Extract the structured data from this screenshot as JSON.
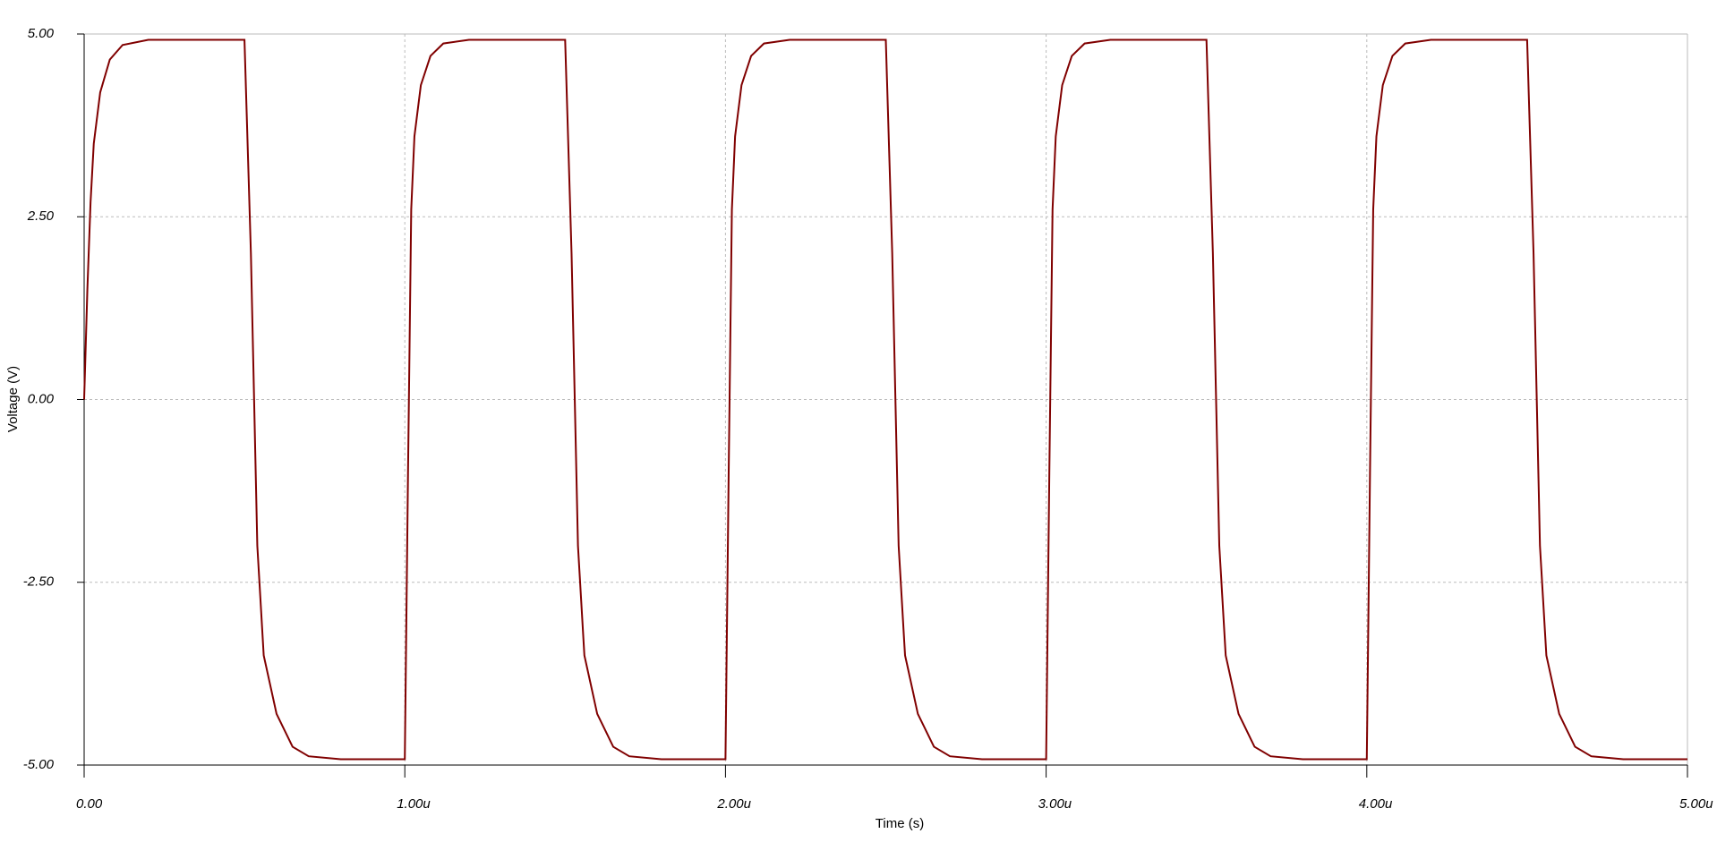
{
  "chart_data": {
    "type": "line",
    "xlabel": "Time (s)",
    "ylabel": "Voltage (V)",
    "xlim": [
      0,
      5e-06
    ],
    "ylim": [
      -5,
      5
    ],
    "xticks": [
      {
        "value": 0,
        "label": "0.00"
      },
      {
        "value": 1e-06,
        "label": "1.00u"
      },
      {
        "value": 2e-06,
        "label": "2.00u"
      },
      {
        "value": 3e-06,
        "label": "3.00u"
      },
      {
        "value": 4e-06,
        "label": "4.00u"
      },
      {
        "value": 5e-06,
        "label": "5.00u"
      }
    ],
    "yticks": [
      {
        "value": -5,
        "label": "-5.00"
      },
      {
        "value": -2.5,
        "label": "-2.50"
      },
      {
        "value": 0,
        "label": "0.00"
      },
      {
        "value": 2.5,
        "label": "2.50"
      },
      {
        "value": 5,
        "label": "5.00"
      }
    ],
    "grid": true,
    "series": [
      {
        "color": "#800000",
        "x": [
          0,
          1e-08,
          2e-08,
          3e-08,
          5e-08,
          8e-08,
          1.2e-07,
          2e-07,
          5e-07,
          5.2e-07,
          5.4e-07,
          5.6e-07,
          6e-07,
          6.5e-07,
          7e-07,
          8e-07,
          1e-06,
          1.01e-06,
          1.02e-06,
          1.03e-06,
          1.05e-06,
          1.08e-06,
          1.12e-06,
          1.2e-06,
          1.5e-06,
          1.52e-06,
          1.54e-06,
          1.56e-06,
          1.6e-06,
          1.65e-06,
          1.7e-06,
          1.8e-06,
          2e-06,
          2.01e-06,
          2.02e-06,
          2.03e-06,
          2.05e-06,
          2.08e-06,
          2.12e-06,
          2.2e-06,
          2.5e-06,
          2.52e-06,
          2.54e-06,
          2.56e-06,
          2.6e-06,
          2.65e-06,
          2.7e-06,
          2.8e-06,
          3e-06,
          3.01e-06,
          3.02e-06,
          3.03e-06,
          3.05e-06,
          3.08e-06,
          3.12e-06,
          3.2e-06,
          3.5e-06,
          3.52e-06,
          3.54e-06,
          3.56e-06,
          3.6e-06,
          3.65e-06,
          3.7e-06,
          3.8e-06,
          4e-06,
          4.01e-06,
          4.02e-06,
          4.03e-06,
          4.05e-06,
          4.08e-06,
          4.12e-06,
          4.2e-06,
          4.5e-06,
          4.52e-06,
          4.54e-06,
          4.56e-06,
          4.6e-06,
          4.65e-06,
          4.7e-06,
          4.8e-06,
          5e-06
        ],
        "values": [
          0,
          1.5,
          2.7,
          3.5,
          4.2,
          4.65,
          4.85,
          4.92,
          4.92,
          2.0,
          -2.0,
          -3.5,
          -4.3,
          -4.75,
          -4.88,
          -4.92,
          -4.92,
          -1.0,
          2.6,
          3.6,
          4.3,
          4.7,
          4.87,
          4.92,
          4.92,
          2.0,
          -2.0,
          -3.5,
          -4.3,
          -4.75,
          -4.88,
          -4.92,
          -4.92,
          -1.0,
          2.6,
          3.6,
          4.3,
          4.7,
          4.87,
          4.92,
          4.92,
          2.0,
          -2.0,
          -3.5,
          -4.3,
          -4.75,
          -4.88,
          -4.92,
          -4.92,
          -1.0,
          2.6,
          3.6,
          4.3,
          4.7,
          4.87,
          4.92,
          4.92,
          2.0,
          -2.0,
          -3.5,
          -4.3,
          -4.75,
          -4.88,
          -4.92,
          -4.92,
          -1.0,
          2.6,
          3.6,
          4.3,
          4.7,
          4.87,
          4.92,
          4.92,
          2.0,
          -2.0,
          -3.5,
          -4.3,
          -4.75,
          -4.88,
          -4.92,
          -4.92
        ]
      }
    ]
  }
}
